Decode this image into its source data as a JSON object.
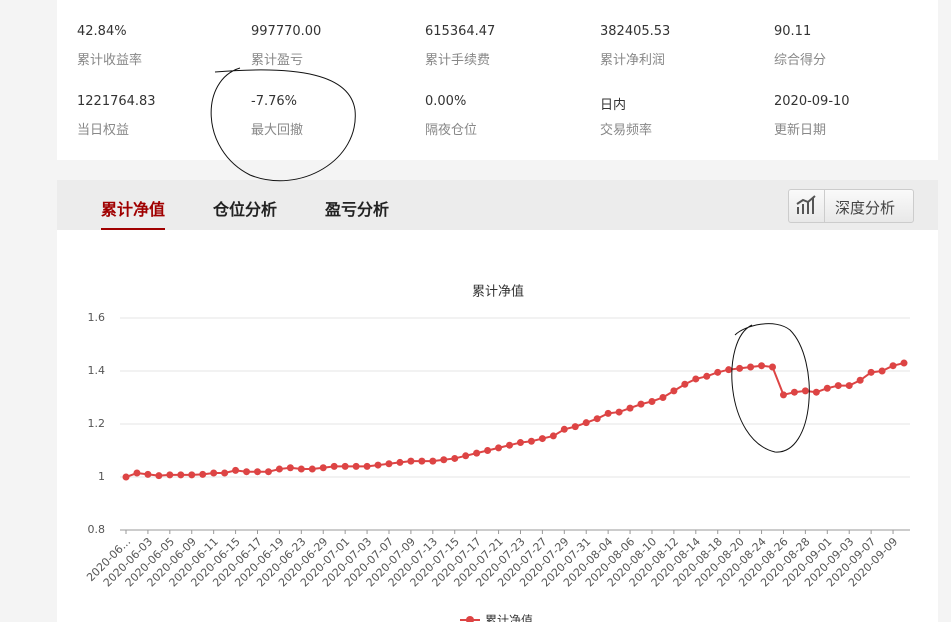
{
  "stats": [
    {
      "value": "42.84%",
      "label": "累计收益率"
    },
    {
      "value": "997770.00",
      "label": "累计盈亏"
    },
    {
      "value": "615364.47",
      "label": "累计手续费"
    },
    {
      "value": "382405.53",
      "label": "累计净利润"
    },
    {
      "value": "90.11",
      "label": "综合得分"
    },
    {
      "value": "1221764.83",
      "label": "当日权益"
    },
    {
      "value": "-7.76%",
      "label": "最大回撤"
    },
    {
      "value": "0.00%",
      "label": "隔夜仓位"
    },
    {
      "value": "日内",
      "label": "交易频率"
    },
    {
      "value": "2020-09-10",
      "label": "更新日期"
    }
  ],
  "tabs": [
    "累计净值",
    "仓位分析",
    "盈亏分析"
  ],
  "button": "深度分析",
  "chart_data": {
    "type": "line",
    "title": "累计净值",
    "categories": [
      "2020-06...",
      null,
      "2020-06-03",
      null,
      "2020-06-05",
      null,
      "2020-06-09",
      null,
      "2020-06-11",
      null,
      "2020-06-15",
      null,
      "2020-06-17",
      null,
      "2020-06-19",
      null,
      "2020-06-23",
      null,
      "2020-06-29",
      null,
      "2020-07-01",
      null,
      "2020-07-03",
      null,
      "2020-07-07",
      null,
      "2020-07-09",
      null,
      "2020-07-13",
      null,
      "2020-07-15",
      null,
      "2020-07-17",
      null,
      "2020-07-21",
      null,
      "2020-07-23",
      null,
      "2020-07-27",
      null,
      "2020-07-29",
      null,
      "2020-07-31",
      null,
      "2020-08-04",
      null,
      "2020-08-06",
      null,
      "2020-08-10",
      null,
      "2020-08-12",
      null,
      "2020-08-14",
      null,
      "2020-08-18",
      null,
      "2020-08-20",
      null,
      "2020-08-24",
      null,
      "2020-08-26",
      null,
      "2020-08-28",
      null,
      "2020-09-01",
      null,
      "2020-09-03",
      null,
      "2020-09-07",
      null,
      "2020-09-09",
      null
    ],
    "series": [
      {
        "name": "累计净值",
        "color": "#dd4444",
        "values": [
          1.0,
          1.015,
          1.01,
          1.005,
          1.008,
          1.008,
          1.008,
          1.01,
          1.015,
          1.015,
          1.025,
          1.02,
          1.02,
          1.02,
          1.03,
          1.035,
          1.03,
          1.03,
          1.035,
          1.04,
          1.04,
          1.04,
          1.04,
          1.045,
          1.05,
          1.055,
          1.06,
          1.06,
          1.06,
          1.065,
          1.07,
          1.08,
          1.09,
          1.1,
          1.11,
          1.12,
          1.13,
          1.135,
          1.145,
          1.155,
          1.18,
          1.19,
          1.205,
          1.22,
          1.24,
          1.245,
          1.26,
          1.275,
          1.285,
          1.3,
          1.325,
          1.35,
          1.37,
          1.38,
          1.395,
          1.405,
          1.41,
          1.415,
          1.42,
          1.415,
          1.31,
          1.32,
          1.325,
          1.32,
          1.335,
          1.345,
          1.345,
          1.365,
          1.395,
          1.4,
          1.42,
          1.43
        ]
      }
    ],
    "ylim": [
      0.8,
      1.6
    ],
    "yticks": [
      0.8,
      1,
      1.2,
      1.4,
      1.6
    ],
    "grid": true
  }
}
